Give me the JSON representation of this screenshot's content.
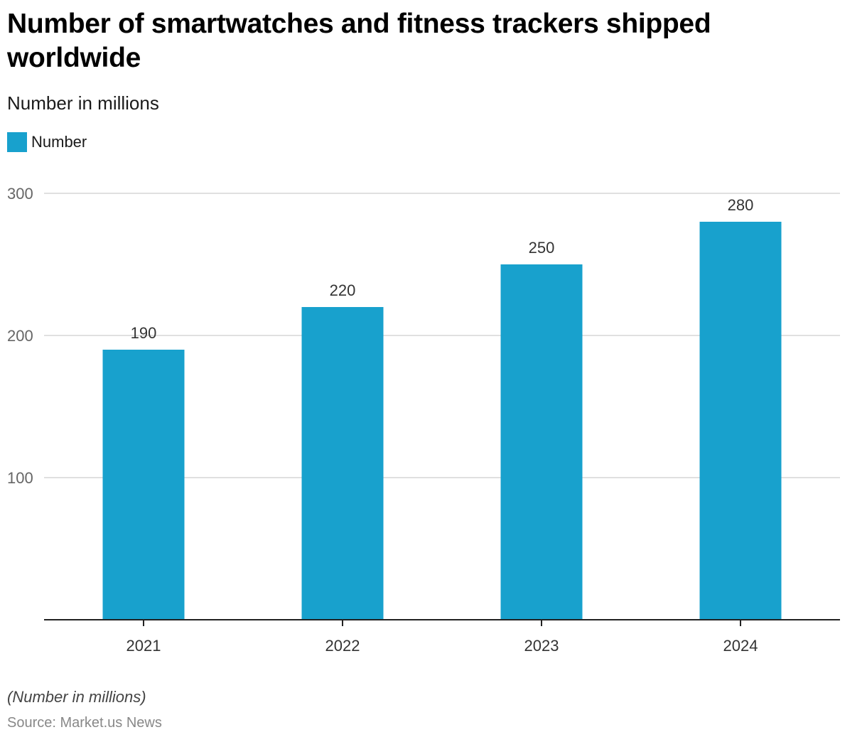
{
  "title": "Number of smartwatches and fitness trackers shipped worldwide",
  "subtitle": "Number in millions",
  "note": "(Number in millions)",
  "source": "Source: Market.us News",
  "colors": {
    "bar": "#18a1cd",
    "grid": "#d6d6d6",
    "axis": "#222222",
    "label": "#333333",
    "tick_label": "#666666"
  },
  "legend": [
    {
      "label": "Number",
      "color": "#18a1cd"
    }
  ],
  "chart_data": {
    "type": "bar",
    "title": "Number of smartwatches and fitness trackers shipped worldwide",
    "subtitle": "Number in millions",
    "xlabel": "",
    "ylabel": "",
    "categories": [
      "2021",
      "2022",
      "2023",
      "2024"
    ],
    "series": [
      {
        "name": "Number",
        "values": [
          190,
          220,
          250,
          280
        ]
      }
    ],
    "ylim": [
      0,
      300
    ],
    "yticks": [
      100,
      200,
      300
    ],
    "grid": true,
    "legend_position": "top-left",
    "data_labels": [
      "190",
      "220",
      "250",
      "280"
    ]
  }
}
